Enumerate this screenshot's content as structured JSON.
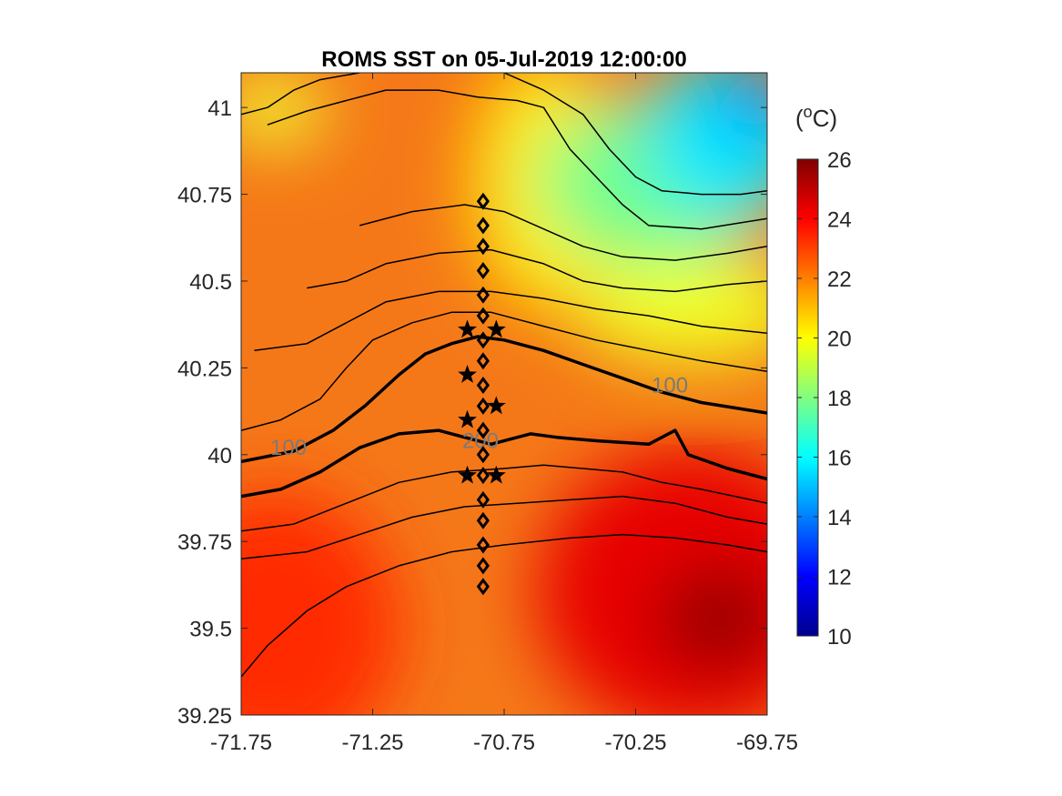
{
  "chart_data": {
    "type": "heatmap",
    "title": "ROMS SST on 05-Jul-2019 12:00:00",
    "xlim": [
      -71.75,
      -69.75
    ],
    "ylim": [
      39.25,
      41.1
    ],
    "x_ticks": [
      "-71.75",
      "-71.25",
      "-70.75",
      "-70.25",
      "-69.75"
    ],
    "x_tick_values": [
      -71.75,
      -71.25,
      -70.75,
      -70.25,
      -69.75
    ],
    "y_ticks": [
      "41",
      "40.75",
      "40.5",
      "40.25",
      "40",
      "39.75",
      "39.5",
      "39.25"
    ],
    "y_tick_values": [
      41,
      40.75,
      40.5,
      40.25,
      40,
      39.75,
      39.5,
      39.25
    ],
    "colorbar": {
      "label_base": "(",
      "label_sup": "o",
      "label_tail": "C)",
      "range": [
        10,
        26
      ],
      "ticks": [
        "26",
        "24",
        "22",
        "20",
        "18",
        "16",
        "14",
        "12",
        "10"
      ],
      "tick_values": [
        26,
        24,
        22,
        20,
        18,
        16,
        14,
        12,
        10
      ],
      "colormap": "jet"
    },
    "contour_labels": [
      {
        "text": "100",
        "x": -71.57,
        "y": 40.02
      },
      {
        "text": "100",
        "x": -70.12,
        "y": 40.2
      },
      {
        "text": "200",
        "x": -70.84,
        "y": 40.04
      }
    ],
    "bathymetry_contours": [
      {
        "label": "100",
        "bold": true,
        "points": [
          [
            -71.75,
            39.98
          ],
          [
            -71.55,
            40.01
          ],
          [
            -71.4,
            40.07
          ],
          [
            -71.28,
            40.14
          ],
          [
            -71.15,
            40.23
          ],
          [
            -71.05,
            40.29
          ],
          [
            -70.95,
            40.32
          ],
          [
            -70.85,
            40.34
          ],
          [
            -70.75,
            40.33
          ],
          [
            -70.6,
            40.3
          ],
          [
            -70.45,
            40.26
          ],
          [
            -70.3,
            40.22
          ],
          [
            -70.15,
            40.18
          ],
          [
            -70.0,
            40.15
          ],
          [
            -69.75,
            40.12
          ]
        ]
      },
      {
        "label": "200",
        "bold": true,
        "points": [
          [
            -71.75,
            39.88
          ],
          [
            -71.6,
            39.9
          ],
          [
            -71.45,
            39.95
          ],
          [
            -71.3,
            40.02
          ],
          [
            -71.15,
            40.06
          ],
          [
            -71.0,
            40.07
          ],
          [
            -70.9,
            40.05
          ],
          [
            -70.8,
            40.03
          ],
          [
            -70.65,
            40.06
          ],
          [
            -70.55,
            40.05
          ],
          [
            -70.4,
            40.04
          ],
          [
            -70.2,
            40.03
          ],
          [
            -70.1,
            40.07
          ],
          [
            -70.05,
            40.0
          ],
          [
            -69.9,
            39.96
          ],
          [
            -69.75,
            39.93
          ]
        ]
      },
      {
        "bold": false,
        "points": [
          [
            -71.75,
            40.07
          ],
          [
            -71.6,
            40.1
          ],
          [
            -71.45,
            40.16
          ],
          [
            -71.35,
            40.25
          ],
          [
            -71.25,
            40.33
          ],
          [
            -71.1,
            40.38
          ],
          [
            -70.95,
            40.41
          ],
          [
            -70.8,
            40.41
          ],
          [
            -70.6,
            40.37
          ],
          [
            -70.4,
            40.33
          ],
          [
            -70.2,
            40.3
          ],
          [
            -70.0,
            40.27
          ],
          [
            -69.75,
            40.24
          ]
        ]
      },
      {
        "bold": false,
        "points": [
          [
            -71.7,
            40.3
          ],
          [
            -71.5,
            40.32
          ],
          [
            -71.35,
            40.38
          ],
          [
            -71.2,
            40.44
          ],
          [
            -71.0,
            40.47
          ],
          [
            -70.8,
            40.47
          ],
          [
            -70.6,
            40.45
          ],
          [
            -70.4,
            40.42
          ],
          [
            -70.2,
            40.4
          ],
          [
            -70.0,
            40.37
          ],
          [
            -69.75,
            40.35
          ]
        ]
      },
      {
        "bold": false,
        "points": [
          [
            -71.5,
            40.48
          ],
          [
            -71.35,
            40.5
          ],
          [
            -71.2,
            40.55
          ],
          [
            -71.0,
            40.58
          ],
          [
            -70.8,
            40.59
          ],
          [
            -70.6,
            40.55
          ],
          [
            -70.45,
            40.5
          ],
          [
            -70.3,
            40.48
          ],
          [
            -70.1,
            40.47
          ],
          [
            -69.9,
            40.49
          ],
          [
            -69.75,
            40.5
          ]
        ]
      },
      {
        "bold": false,
        "points": [
          [
            -71.3,
            40.66
          ],
          [
            -71.1,
            40.7
          ],
          [
            -70.9,
            40.72
          ],
          [
            -70.75,
            40.7
          ],
          [
            -70.6,
            40.65
          ],
          [
            -70.45,
            40.6
          ],
          [
            -70.3,
            40.57
          ],
          [
            -70.1,
            40.56
          ],
          [
            -69.9,
            40.58
          ],
          [
            -69.75,
            40.6
          ]
        ]
      },
      {
        "bold": false,
        "points": [
          [
            -71.65,
            40.95
          ],
          [
            -71.5,
            40.99
          ],
          [
            -71.35,
            41.02
          ],
          [
            -71.2,
            41.05
          ],
          [
            -71.0,
            41.05
          ],
          [
            -70.85,
            41.03
          ],
          [
            -70.7,
            41.02
          ],
          [
            -70.6,
            41.0
          ],
          [
            -70.5,
            40.88
          ],
          [
            -70.4,
            40.8
          ],
          [
            -70.3,
            40.72
          ],
          [
            -70.2,
            40.66
          ],
          [
            -70.0,
            40.65
          ],
          [
            -69.75,
            40.68
          ]
        ]
      },
      {
        "bold": false,
        "points": [
          [
            -71.75,
            40.98
          ],
          [
            -71.65,
            41.0
          ],
          [
            -71.55,
            41.05
          ],
          [
            -71.45,
            41.08
          ],
          [
            -71.3,
            41.1
          ]
        ]
      },
      {
        "bold": false,
        "points": [
          [
            -70.75,
            41.1
          ],
          [
            -70.6,
            41.05
          ],
          [
            -70.45,
            40.98
          ],
          [
            -70.35,
            40.88
          ],
          [
            -70.25,
            40.8
          ],
          [
            -70.15,
            40.76
          ],
          [
            -70.0,
            40.75
          ],
          [
            -69.85,
            40.75
          ],
          [
            -69.75,
            40.76
          ]
        ]
      },
      {
        "bold": false,
        "points": [
          [
            -71.75,
            39.78
          ],
          [
            -71.55,
            39.8
          ],
          [
            -71.35,
            39.86
          ],
          [
            -71.15,
            39.92
          ],
          [
            -70.95,
            39.95
          ],
          [
            -70.75,
            39.96
          ],
          [
            -70.6,
            39.97
          ],
          [
            -70.45,
            39.96
          ],
          [
            -70.3,
            39.95
          ],
          [
            -70.15,
            39.92
          ],
          [
            -70.0,
            39.9
          ],
          [
            -69.75,
            39.86
          ]
        ]
      },
      {
        "bold": false,
        "points": [
          [
            -71.75,
            39.7
          ],
          [
            -71.5,
            39.72
          ],
          [
            -71.3,
            39.77
          ],
          [
            -71.1,
            39.82
          ],
          [
            -70.9,
            39.85
          ],
          [
            -70.7,
            39.86
          ],
          [
            -70.5,
            39.87
          ],
          [
            -70.3,
            39.88
          ],
          [
            -70.1,
            39.86
          ],
          [
            -69.9,
            39.82
          ],
          [
            -69.75,
            39.8
          ]
        ]
      },
      {
        "bold": false,
        "points": [
          [
            -71.75,
            39.36
          ],
          [
            -71.65,
            39.45
          ],
          [
            -71.5,
            39.55
          ],
          [
            -71.35,
            39.62
          ],
          [
            -71.15,
            39.68
          ],
          [
            -70.95,
            39.72
          ],
          [
            -70.75,
            39.74
          ],
          [
            -70.5,
            39.76
          ],
          [
            -70.3,
            39.77
          ],
          [
            -70.1,
            39.76
          ],
          [
            -69.9,
            39.74
          ],
          [
            -69.75,
            39.72
          ]
        ]
      }
    ],
    "stations_diamond": {
      "x": -70.83,
      "y": [
        40.73,
        40.66,
        40.6,
        40.53,
        40.46,
        40.4,
        40.33,
        40.27,
        40.2,
        40.14,
        40.07,
        40.0,
        39.94,
        39.87,
        39.81,
        39.74,
        39.68,
        39.62
      ]
    },
    "stations_star": [
      {
        "x": -70.89,
        "y": 40.36
      },
      {
        "x": -70.78,
        "y": 40.36
      },
      {
        "x": -70.89,
        "y": 40.23
      },
      {
        "x": -70.78,
        "y": 40.14
      },
      {
        "x": -70.89,
        "y": 40.1
      },
      {
        "x": -70.89,
        "y": 39.94
      },
      {
        "x": -70.78,
        "y": 39.94
      }
    ]
  }
}
